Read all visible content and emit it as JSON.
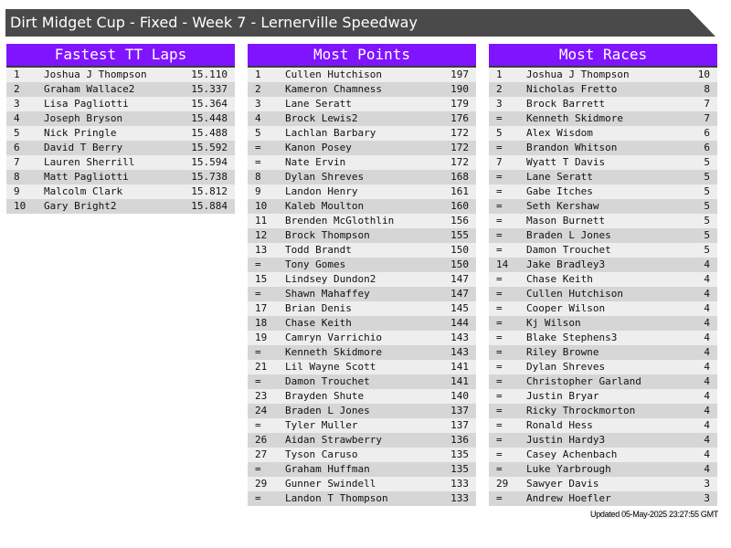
{
  "title": "Dirt Midget Cup - Fixed - Week 7 - Lernerville Speedway",
  "colors": {
    "header": "#8014ff",
    "title_bar": "#4a4a4a",
    "row_light": "#eeeeee",
    "row_dark": "#d6d6d6"
  },
  "panels": [
    {
      "title": "Fastest TT Laps",
      "rows": [
        [
          "1",
          "Joshua J Thompson",
          "15.110"
        ],
        [
          "2",
          "Graham Wallace2",
          "15.337"
        ],
        [
          "3",
          "Lisa Pagliotti",
          "15.364"
        ],
        [
          "4",
          "Joseph Bryson",
          "15.448"
        ],
        [
          "5",
          "Nick Pringle",
          "15.488"
        ],
        [
          "6",
          "David T Berry",
          "15.592"
        ],
        [
          "7",
          "Lauren Sherrill",
          "15.594"
        ],
        [
          "8",
          "Matt Pagliotti",
          "15.738"
        ],
        [
          "9",
          "Malcolm Clark",
          "15.812"
        ],
        [
          "10",
          "Gary Bright2",
          "15.884"
        ]
      ]
    },
    {
      "title": "Most Points",
      "rows": [
        [
          "1",
          "Cullen Hutchison",
          "197"
        ],
        [
          "2",
          "Kameron Chamness",
          "190"
        ],
        [
          "3",
          "Lane Seratt",
          "179"
        ],
        [
          "4",
          "Brock Lewis2",
          "176"
        ],
        [
          "5",
          "Lachlan Barbary",
          "172"
        ],
        [
          "=",
          "Kanon Posey",
          "172"
        ],
        [
          "=",
          "Nate Ervin",
          "172"
        ],
        [
          "8",
          "Dylan Shreves",
          "168"
        ],
        [
          "9",
          "Landon Henry",
          "161"
        ],
        [
          "10",
          "Kaleb Moulton",
          "160"
        ],
        [
          "11",
          "Brenden McGlothlin",
          "156"
        ],
        [
          "12",
          "Brock Thompson",
          "155"
        ],
        [
          "13",
          "Todd Brandt",
          "150"
        ],
        [
          "=",
          "Tony Gomes",
          "150"
        ],
        [
          "15",
          "Lindsey Dundon2",
          "147"
        ],
        [
          "=",
          "Shawn Mahaffey",
          "147"
        ],
        [
          "17",
          "Brian Denis",
          "145"
        ],
        [
          "18",
          "Chase Keith",
          "144"
        ],
        [
          "19",
          "Camryn Varrichio",
          "143"
        ],
        [
          "=",
          "Kenneth Skidmore",
          "143"
        ],
        [
          "21",
          "Lil Wayne Scott",
          "141"
        ],
        [
          "=",
          "Damon Trouchet",
          "141"
        ],
        [
          "23",
          "Brayden Shute",
          "140"
        ],
        [
          "24",
          "Braden L Jones",
          "137"
        ],
        [
          "=",
          "Tyler Muller",
          "137"
        ],
        [
          "26",
          "Aidan Strawberry",
          "136"
        ],
        [
          "27",
          "Tyson Caruso",
          "135"
        ],
        [
          "=",
          "Graham Huffman",
          "135"
        ],
        [
          "29",
          "Gunner Swindell",
          "133"
        ],
        [
          "=",
          "Landon T Thompson",
          "133"
        ]
      ]
    },
    {
      "title": "Most Races",
      "rows": [
        [
          "1",
          "Joshua J Thompson",
          "10"
        ],
        [
          "2",
          "Nicholas Fretto",
          "8"
        ],
        [
          "3",
          "Brock Barrett",
          "7"
        ],
        [
          "=",
          "Kenneth Skidmore",
          "7"
        ],
        [
          "5",
          "Alex Wisdom",
          "6"
        ],
        [
          "=",
          "Brandon Whitson",
          "6"
        ],
        [
          "7",
          "Wyatt T Davis",
          "5"
        ],
        [
          "=",
          "Lane Seratt",
          "5"
        ],
        [
          "=",
          "Gabe Itches",
          "5"
        ],
        [
          "=",
          "Seth Kershaw",
          "5"
        ],
        [
          "=",
          "Mason Burnett",
          "5"
        ],
        [
          "=",
          "Braden L Jones",
          "5"
        ],
        [
          "=",
          "Damon Trouchet",
          "5"
        ],
        [
          "14",
          "Jake Bradley3",
          "4"
        ],
        [
          "=",
          "Chase Keith",
          "4"
        ],
        [
          "=",
          "Cullen Hutchison",
          "4"
        ],
        [
          "=",
          "Cooper Wilson",
          "4"
        ],
        [
          "=",
          "Kj Wilson",
          "4"
        ],
        [
          "=",
          "Blake Stephens3",
          "4"
        ],
        [
          "=",
          "Riley Browne",
          "4"
        ],
        [
          "=",
          "Dylan Shreves",
          "4"
        ],
        [
          "=",
          "Christopher Garland",
          "4"
        ],
        [
          "=",
          "Justin Bryar",
          "4"
        ],
        [
          "=",
          "Ricky Throckmorton",
          "4"
        ],
        [
          "=",
          "Ronald Hess",
          "4"
        ],
        [
          "=",
          "Justin Hardy3",
          "4"
        ],
        [
          "=",
          "Casey Achenbach",
          "4"
        ],
        [
          "=",
          "Luke Yarbrough",
          "4"
        ],
        [
          "29",
          "Sawyer Davis",
          "3"
        ],
        [
          "=",
          "Andrew Hoefler",
          "3"
        ]
      ]
    }
  ],
  "updated": "Updated 05-May-2025 23:27:55 GMT"
}
